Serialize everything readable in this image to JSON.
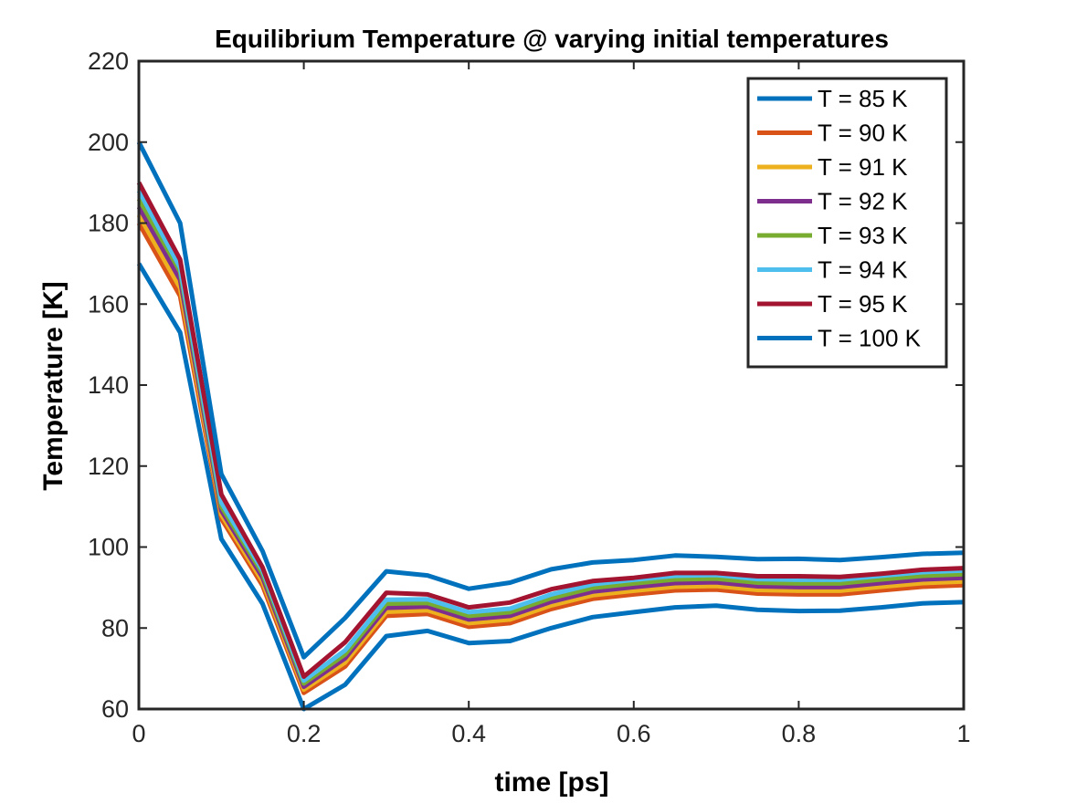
{
  "chart_data": {
    "type": "line",
    "title": "Equilibrium Temperature @ varying initial temperatures",
    "xlabel": "time [ps]",
    "ylabel": "Temperature [K]",
    "xlim": [
      0,
      1
    ],
    "ylim": [
      60,
      220
    ],
    "xticks": [
      0,
      0.2,
      0.4,
      0.6,
      0.8,
      1
    ],
    "xtick_labels": [
      "0",
      "0.2",
      "0.4",
      "0.6",
      "0.8",
      "1"
    ],
    "yticks": [
      60,
      80,
      100,
      120,
      140,
      160,
      180,
      200,
      220
    ],
    "ytick_labels": [
      "60",
      "80",
      "100",
      "120",
      "140",
      "160",
      "180",
      "200",
      "220"
    ],
    "grid": false,
    "legend_position": "top-right",
    "x": [
      0,
      0.05,
      0.1,
      0.15,
      0.2,
      0.25,
      0.3,
      0.35,
      0.4,
      0.45,
      0.5,
      0.55,
      0.6,
      0.65,
      0.7,
      0.75,
      0.8,
      0.85,
      0.9,
      0.95,
      1.0
    ],
    "series": [
      {
        "name": "T = 85 K",
        "color": "#0072BD",
        "values": [
          170,
          153,
          102,
          86,
          60,
          66,
          78,
          79.3,
          76.3,
          76.8,
          80,
          82.7,
          83.9,
          85.1,
          85.5,
          84.5,
          84.2,
          84.3,
          85.1,
          86.1,
          86.4
        ]
      },
      {
        "name": "T = 90 K",
        "color": "#D95319",
        "values": [
          180,
          162,
          107,
          90.5,
          64,
          70.5,
          83,
          83.5,
          80.3,
          81.2,
          84.7,
          87.2,
          88.3,
          89.3,
          89.5,
          88.5,
          88.3,
          88.3,
          89.3,
          90.2,
          90.6
        ]
      },
      {
        "name": "T = 91 K",
        "color": "#EDB120",
        "values": [
          182,
          164,
          108,
          91.5,
          64.8,
          71.5,
          84,
          84.4,
          81.2,
          82.1,
          85.6,
          88.1,
          89.2,
          90.2,
          90.4,
          89.4,
          89.2,
          89.2,
          90.2,
          91.1,
          91.5
        ]
      },
      {
        "name": "T = 92 K",
        "color": "#7E2F8E",
        "values": [
          184,
          166,
          109,
          92.5,
          65.5,
          72.5,
          85,
          85.3,
          82.1,
          83,
          86.5,
          89,
          90.1,
          91.1,
          91.3,
          90.3,
          90.1,
          90.1,
          91.1,
          92,
          92.4
        ]
      },
      {
        "name": "T = 93 K",
        "color": "#77AC30",
        "values": [
          186,
          168,
          110,
          93.5,
          66.3,
          73.5,
          86,
          86.2,
          83,
          83.9,
          87.4,
          89.9,
          91,
          92,
          92.2,
          91.2,
          91,
          91,
          92,
          92.9,
          93.3
        ]
      },
      {
        "name": "T = 94 K",
        "color": "#4DBEEE",
        "values": [
          188,
          169,
          111,
          94.3,
          67,
          74.5,
          87,
          87.1,
          83.9,
          84.8,
          88.3,
          90.8,
          91.9,
          92.9,
          93.1,
          92.1,
          91.9,
          91.9,
          92.9,
          93.8,
          94.2
        ]
      },
      {
        "name": "T = 95 K",
        "color": "#A2142F",
        "values": [
          190,
          171,
          113,
          95,
          68,
          76.5,
          88.7,
          88.3,
          85.1,
          86.3,
          89.6,
          91.6,
          92.4,
          93.6,
          93.6,
          92.8,
          92.8,
          92.6,
          93.4,
          94.4,
          94.8
        ]
      },
      {
        "name": "T = 100 K",
        "color": "#0072BD",
        "values": [
          200,
          180,
          118,
          99,
          72.8,
          82.5,
          94,
          93,
          89.7,
          91.2,
          94.5,
          96.2,
          96.8,
          97.9,
          97.6,
          97,
          97.1,
          96.8,
          97.5,
          98.3,
          98.6
        ]
      }
    ]
  }
}
